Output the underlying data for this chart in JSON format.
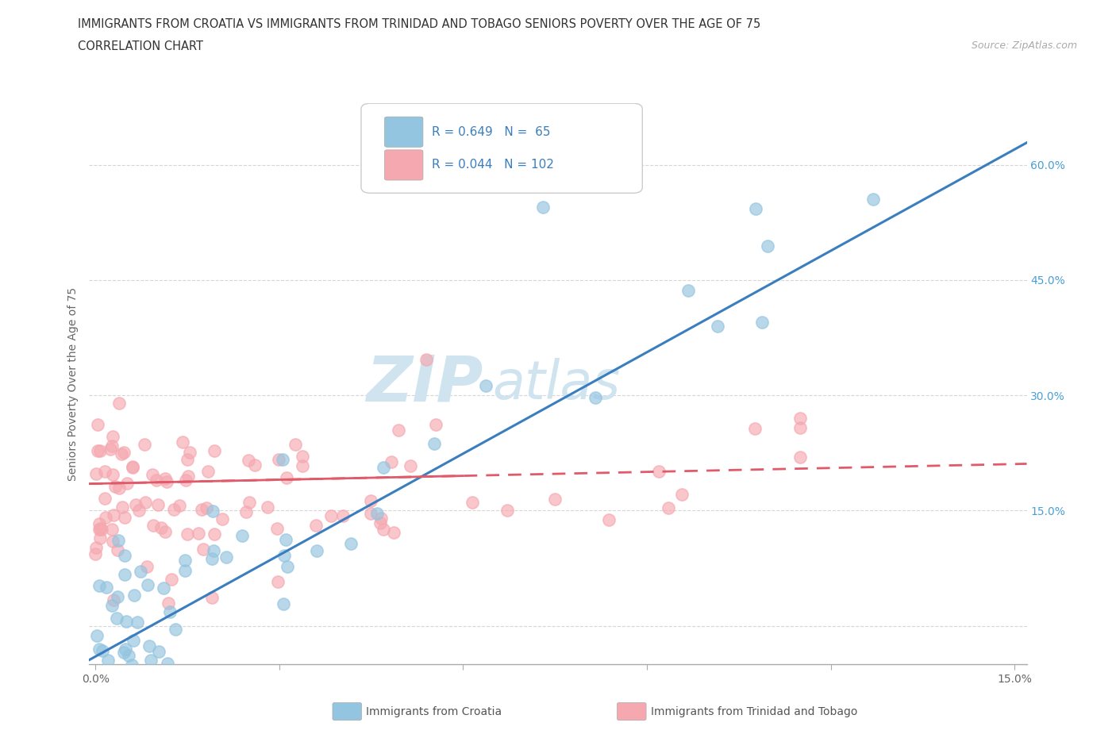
{
  "title_line1": "IMMIGRANTS FROM CROATIA VS IMMIGRANTS FROM TRINIDAD AND TOBAGO SENIORS POVERTY OVER THE AGE OF 75",
  "title_line2": "CORRELATION CHART",
  "source_text": "Source: ZipAtlas.com",
  "ylabel": "Seniors Poverty Over the Age of 75",
  "xlim": [
    -0.001,
    0.152
  ],
  "ylim": [
    -0.05,
    0.68
  ],
  "xticks": [
    0.0,
    0.03,
    0.06,
    0.09,
    0.12,
    0.15
  ],
  "yticks": [
    0.0,
    0.15,
    0.3,
    0.45,
    0.6
  ],
  "xticklabels": [
    "0.0%",
    "",
    "",
    "",
    "",
    "15.0%"
  ],
  "yticklabels_right": [
    "",
    "15.0%",
    "30.0%",
    "45.0%",
    "60.0%"
  ],
  "croatia_color": "#93c4e0",
  "trinidad_color": "#f5a8b0",
  "croatia_R": 0.649,
  "croatia_N": 65,
  "trinidad_R": 0.044,
  "trinidad_N": 102,
  "line_color_croatia": "#3a7ebf",
  "line_color_trinidad": "#e05a6a",
  "watermark_zip": "ZIP",
  "watermark_atlas": "atlas",
  "watermark_color": "#d0e4f0",
  "legend_text_color": "#3a7ebf",
  "grid_color": "#dddddd",
  "axis_label_color": "#666666",
  "tick_label_color": "#4a9fd4"
}
